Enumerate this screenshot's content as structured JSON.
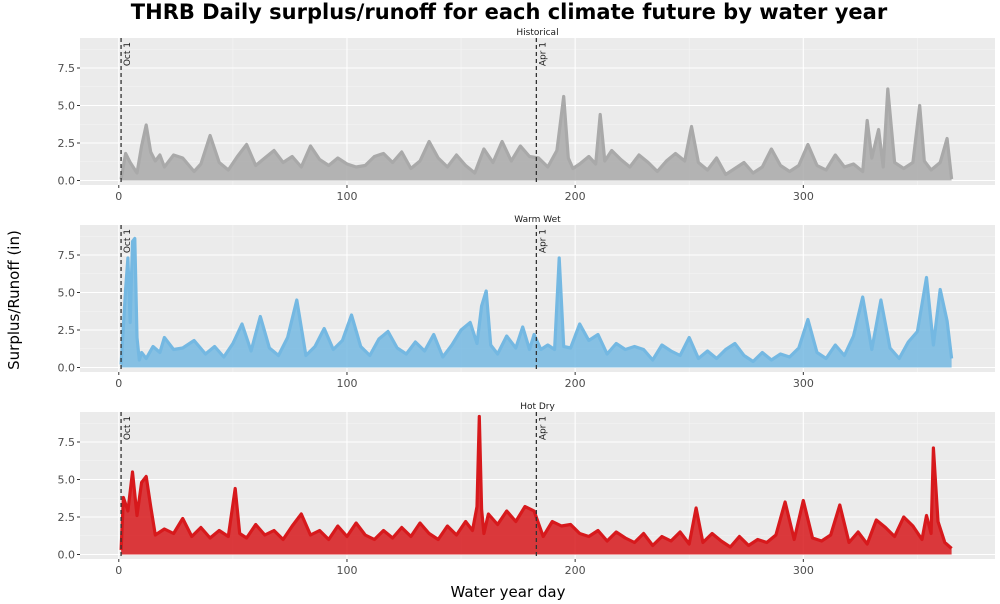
{
  "chart_data": {
    "type": "line",
    "title": "THRB Daily surplus/runoff for each climate future by water year",
    "xlabel": "Water year day",
    "ylabel": "Surplus/Runoff (in)",
    "xlim": [
      -17,
      384
    ],
    "ylim": [
      -0.3,
      9.5
    ],
    "x_ticks": [
      "0",
      "100",
      "200",
      "300"
    ],
    "y_ticks": [
      "0.0",
      "2.5",
      "5.0",
      "7.5"
    ],
    "reference_lines": [
      {
        "x": 1,
        "label": "Oct 1"
      },
      {
        "x": 183,
        "label": "Apr 1"
      }
    ],
    "colors": {
      "panel_background": "#ebebeb",
      "gridline": "#ffffff",
      "reference_line": "#333333"
    },
    "panels": [
      {
        "name": "Historical",
        "color": "#a9a9a9",
        "x": [
          1,
          3,
          5,
          8,
          10,
          12,
          14,
          16,
          18,
          20,
          24,
          28,
          33,
          36,
          40,
          44,
          48,
          52,
          56,
          60,
          64,
          68,
          72,
          76,
          80,
          84,
          88,
          92,
          96,
          100,
          104,
          108,
          112,
          116,
          120,
          124,
          128,
          132,
          136,
          140,
          144,
          148,
          152,
          156,
          160,
          164,
          168,
          172,
          176,
          180,
          184,
          188,
          192,
          195,
          197,
          199,
          202,
          206,
          209,
          211,
          213,
          216,
          220,
          224,
          228,
          232,
          236,
          240,
          244,
          248,
          251,
          254,
          258,
          262,
          266,
          270,
          274,
          278,
          282,
          286,
          290,
          294,
          298,
          302,
          306,
          310,
          314,
          318,
          322,
          326,
          328,
          330,
          333,
          335,
          337,
          340,
          344,
          348,
          351,
          353,
          356,
          360,
          363,
          365
        ],
        "y": [
          0.1,
          1.8,
          1.2,
          0.5,
          2.3,
          3.7,
          1.9,
          1.3,
          1.7,
          0.9,
          1.7,
          1.5,
          0.6,
          1.1,
          3.0,
          1.2,
          0.7,
          1.6,
          2.4,
          1.0,
          1.5,
          2.0,
          1.2,
          1.6,
          0.9,
          2.3,
          1.4,
          1.0,
          1.5,
          1.1,
          0.9,
          1.0,
          1.6,
          1.8,
          1.2,
          1.9,
          0.8,
          1.3,
          2.6,
          1.5,
          0.9,
          1.7,
          1.0,
          0.5,
          2.1,
          1.2,
          2.6,
          1.3,
          2.3,
          1.6,
          1.5,
          0.9,
          2.0,
          5.6,
          1.5,
          0.8,
          1.1,
          1.6,
          1.1,
          4.4,
          1.3,
          2.0,
          1.4,
          0.9,
          1.7,
          1.2,
          0.6,
          1.3,
          1.8,
          1.3,
          3.6,
          1.2,
          0.7,
          1.5,
          0.4,
          0.8,
          1.2,
          0.5,
          0.9,
          2.1,
          1.0,
          0.6,
          1.0,
          2.4,
          1.0,
          0.7,
          1.7,
          0.9,
          1.1,
          0.6,
          4.0,
          1.5,
          3.4,
          0.9,
          6.1,
          1.2,
          0.8,
          1.2,
          5.0,
          1.3,
          0.7,
          1.2,
          2.8,
          0.1
        ]
      },
      {
        "name": "Warm Wet",
        "color": "#74b8e2",
        "x": [
          1,
          3,
          4,
          5,
          6,
          7,
          8,
          9,
          10,
          12,
          15,
          18,
          20,
          24,
          28,
          33,
          38,
          42,
          46,
          50,
          54,
          58,
          62,
          66,
          70,
          74,
          78,
          82,
          86,
          90,
          94,
          98,
          102,
          106,
          110,
          114,
          118,
          122,
          126,
          130,
          134,
          138,
          142,
          146,
          150,
          154,
          157,
          159,
          161,
          163,
          166,
          170,
          174,
          177,
          180,
          182,
          185,
          188,
          191,
          193,
          195,
          198,
          202,
          206,
          210,
          214,
          218,
          222,
          226,
          230,
          234,
          238,
          242,
          246,
          250,
          254,
          258,
          262,
          266,
          270,
          274,
          278,
          282,
          286,
          290,
          294,
          298,
          302,
          306,
          310,
          314,
          318,
          322,
          326,
          330,
          334,
          338,
          342,
          346,
          350,
          354,
          357,
          360,
          363,
          365
        ],
        "y": [
          0.2,
          5.2,
          7.3,
          3.0,
          8.4,
          8.6,
          2.0,
          0.5,
          1.0,
          0.6,
          1.4,
          1.0,
          2.0,
          1.2,
          1.3,
          1.8,
          0.9,
          1.4,
          0.7,
          1.6,
          2.9,
          1.1,
          3.4,
          1.3,
          0.8,
          2.0,
          4.5,
          0.8,
          1.4,
          2.6,
          1.2,
          1.8,
          3.5,
          1.4,
          0.8,
          1.9,
          2.4,
          1.3,
          0.9,
          1.7,
          1.1,
          2.2,
          0.7,
          1.5,
          2.5,
          3.0,
          1.6,
          4.1,
          5.1,
          1.5,
          0.9,
          2.1,
          1.3,
          2.7,
          1.2,
          2.2,
          1.2,
          1.5,
          1.2,
          7.3,
          1.4,
          1.3,
          2.9,
          1.8,
          2.2,
          0.9,
          1.6,
          1.2,
          1.4,
          1.2,
          0.5,
          1.5,
          1.1,
          0.8,
          2.0,
          0.6,
          1.1,
          0.6,
          1.2,
          1.6,
          0.8,
          0.4,
          1.0,
          0.5,
          0.9,
          0.7,
          1.3,
          3.2,
          1.0,
          0.6,
          1.5,
          0.8,
          2.1,
          4.7,
          1.2,
          4.5,
          1.3,
          0.6,
          1.7,
          2.4,
          6.0,
          1.5,
          5.2,
          3.1,
          0.6
        ]
      },
      {
        "name": "Hot Dry",
        "color": "#d7191c",
        "x": [
          1,
          2,
          4,
          6,
          8,
          10,
          12,
          14,
          16,
          20,
          24,
          28,
          32,
          36,
          40,
          44,
          48,
          51,
          53,
          56,
          60,
          64,
          68,
          72,
          76,
          80,
          84,
          88,
          92,
          96,
          100,
          104,
          108,
          112,
          116,
          120,
          124,
          128,
          132,
          136,
          140,
          144,
          148,
          152,
          155,
          157,
          158,
          159,
          160,
          162,
          166,
          170,
          174,
          178,
          182,
          186,
          190,
          194,
          198,
          202,
          206,
          210,
          214,
          218,
          222,
          226,
          230,
          234,
          238,
          242,
          246,
          250,
          253,
          256,
          260,
          264,
          268,
          272,
          276,
          280,
          284,
          288,
          292,
          296,
          300,
          304,
          308,
          312,
          316,
          320,
          324,
          328,
          332,
          336,
          340,
          344,
          348,
          352,
          354,
          356,
          357,
          359,
          362,
          365
        ],
        "y": [
          0.3,
          3.8,
          2.9,
          5.5,
          2.6,
          4.8,
          5.2,
          3.2,
          1.3,
          1.7,
          1.4,
          2.4,
          1.2,
          1.8,
          1.1,
          1.6,
          1.2,
          4.4,
          1.4,
          1.1,
          2.0,
          1.3,
          1.6,
          1.0,
          1.9,
          2.7,
          1.3,
          1.6,
          1.0,
          1.9,
          1.2,
          2.1,
          1.3,
          1.0,
          1.6,
          1.1,
          1.8,
          1.2,
          2.1,
          1.4,
          1.0,
          1.9,
          1.3,
          2.2,
          1.6,
          3.2,
          9.2,
          3.0,
          1.4,
          2.7,
          2.0,
          2.9,
          2.2,
          3.2,
          2.9,
          1.2,
          2.2,
          1.9,
          2.0,
          1.4,
          1.2,
          1.6,
          0.9,
          1.5,
          1.1,
          0.8,
          1.4,
          0.6,
          1.2,
          0.9,
          1.5,
          0.7,
          3.1,
          0.8,
          1.4,
          0.9,
          0.5,
          1.2,
          0.6,
          1.0,
          0.8,
          1.3,
          3.5,
          1.0,
          3.6,
          1.1,
          0.9,
          1.3,
          3.3,
          0.8,
          1.5,
          0.7,
          2.3,
          1.8,
          1.2,
          2.5,
          1.9,
          1.0,
          2.6,
          1.4,
          7.1,
          2.2,
          0.8,
          0.4
        ]
      }
    ]
  }
}
